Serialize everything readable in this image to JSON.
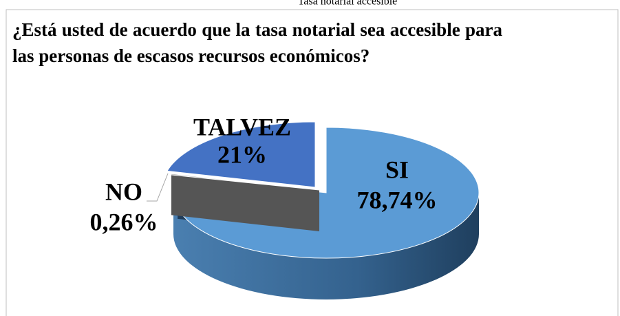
{
  "caption": "Tasa notarial accesible",
  "chart_data": {
    "type": "pie",
    "title": "¿Está usted de acuerdo que la tasa notarial sea accesible para las personas de escasos recursos económicos?",
    "categories": [
      "SI",
      "NO",
      "TALVEZ"
    ],
    "values": [
      78.74,
      0.26,
      21
    ],
    "value_labels": [
      "78,74%",
      "0,26%",
      "21%"
    ],
    "colors": [
      "#5b9bd5",
      "#a5a5a5",
      "#4472c4"
    ]
  }
}
